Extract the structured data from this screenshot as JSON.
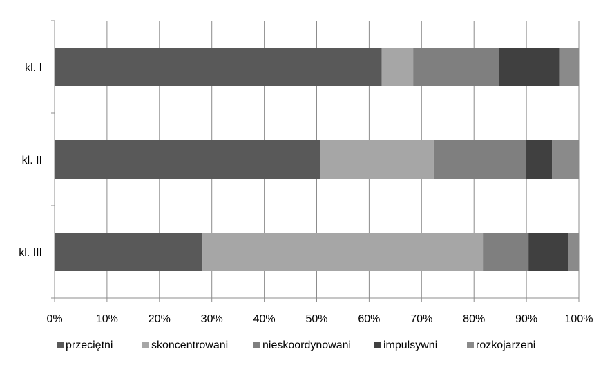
{
  "chart_data": {
    "type": "bar",
    "orientation": "horizontal",
    "stacked": "percent",
    "categories": [
      "kl. I",
      "kl. II",
      "kl. III"
    ],
    "series": [
      {
        "name": "przeciętni",
        "color": "#595959",
        "values": [
          62.4,
          50.6,
          28.2
        ]
      },
      {
        "name": "skoncentrowani",
        "color": "#a6a6a6",
        "values": [
          6.0,
          21.7,
          53.5
        ]
      },
      {
        "name": "nieskoordynowani",
        "color": "#7f7f7f",
        "values": [
          16.4,
          17.6,
          8.7
        ]
      },
      {
        "name": "impulsywni",
        "color": "#404040",
        "values": [
          11.6,
          5.0,
          7.5
        ]
      },
      {
        "name": "rozkojarzeni",
        "color": "#8a8a8a",
        "values": [
          3.6,
          5.1,
          2.1
        ]
      }
    ],
    "xticks": [
      "0%",
      "10%",
      "20%",
      "30%",
      "40%",
      "50%",
      "60%",
      "70%",
      "80%",
      "90%",
      "100%"
    ],
    "xlim": [
      0,
      100
    ],
    "grid": "vertical",
    "legend_position": "bottom",
    "title": "",
    "xlabel": "",
    "ylabel": ""
  }
}
